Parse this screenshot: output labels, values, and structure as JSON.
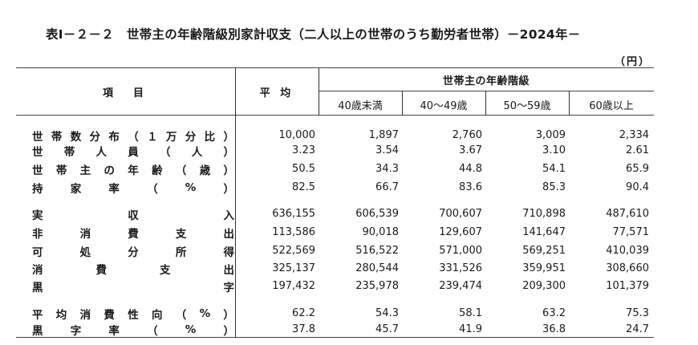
{
  "title": "表Ⅰ－２－２　世帯主の年齢階級別家計収支（二人以上の世帯のうち勤労者世帯）－2024年－",
  "unit": "（円）",
  "header": {
    "item": "項　目",
    "average": "平 均",
    "age_group": "世帯主の年齢階級",
    "age_columns": [
      "40歳未満",
      "40～49歳",
      "50～59歳",
      "60歳以上"
    ]
  },
  "rows": [
    {
      "label_chars": [
        "世",
        "帯",
        "数",
        "分",
        "布",
        "（",
        "１",
        "万",
        "分",
        "比",
        "）"
      ],
      "label": "世帯数分布（1万分比）",
      "values": [
        "10,000",
        "1,897",
        "2,760",
        "3,009",
        "2,334"
      ]
    },
    {
      "label_chars": [
        "世",
        "帯",
        "人",
        "員",
        "（",
        "人",
        "）"
      ],
      "label": "世帯人員（人）",
      "values": [
        "3.23",
        "3.54",
        "3.67",
        "3.10",
        "2.61"
      ]
    },
    {
      "label_chars": [
        "世",
        "帯",
        "主",
        "の",
        "年",
        "齢",
        "（",
        "歳",
        "）"
      ],
      "label": "世帯主の年齢（歳）",
      "values": [
        "50.5",
        "34.3",
        "44.8",
        "54.1",
        "65.9"
      ]
    },
    {
      "label_chars": [
        "持",
        "家",
        "率",
        "（",
        "%",
        "）"
      ],
      "label": "持家率（%）",
      "values": [
        "82.5",
        "66.7",
        "83.6",
        "85.3",
        "90.4"
      ]
    },
    {
      "label_chars": [
        "実",
        "収",
        "入"
      ],
      "label": "実収入",
      "values": [
        "636,155",
        "606,539",
        "700,607",
        "710,898",
        "487,610"
      ]
    },
    {
      "label_chars": [
        "非",
        "消",
        "費",
        "支",
        "出"
      ],
      "label": "非消費支出",
      "values": [
        "113,586",
        "90,018",
        "129,607",
        "141,647",
        "77,571"
      ]
    },
    {
      "label_chars": [
        "可",
        "処",
        "分",
        "所",
        "得"
      ],
      "label": "可処分所得",
      "values": [
        "522,569",
        "516,522",
        "571,000",
        "569,251",
        "410,039"
      ]
    },
    {
      "label_chars": [
        "消",
        "費",
        "支",
        "出"
      ],
      "label": "消費支出",
      "values": [
        "325,137",
        "280,544",
        "331,526",
        "359,951",
        "308,660"
      ]
    },
    {
      "label_chars": [
        "黒",
        "字"
      ],
      "label": "黒字",
      "values": [
        "197,432",
        "235,978",
        "239,474",
        "209,300",
        "101,379"
      ]
    },
    {
      "label_chars": [
        "平",
        "均",
        "消",
        "費",
        "性",
        "向",
        "（",
        "%",
        "）"
      ],
      "label": "平均消費性向（%）",
      "values": [
        "62.2",
        "54.3",
        "58.1",
        "63.2",
        "75.3"
      ]
    },
    {
      "label_chars": [
        "黒",
        "字",
        "率",
        "（",
        "%",
        "）"
      ],
      "label": "黒字率（%）",
      "values": [
        "37.8",
        "45.7",
        "41.9",
        "36.8",
        "24.7"
      ]
    }
  ]
}
